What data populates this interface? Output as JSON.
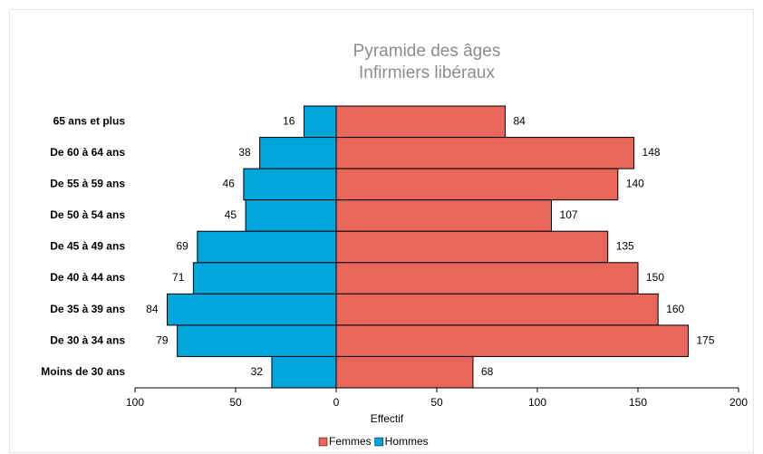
{
  "chart_data": {
    "type": "pyramid",
    "title": "Pyramide des âges",
    "subtitle": "Infirmiers libéraux",
    "x_label": "Effectif",
    "categories": [
      "65 ans et plus",
      "De 60 à 64 ans",
      "De 55 à 59 ans",
      "De 50 à 54 ans",
      "De 45 à 49 ans",
      "De 40 à 44 ans",
      "De 35 à 39 ans",
      "De 30 à 34 ans",
      "Moins de 30 ans"
    ],
    "series": [
      {
        "name": "Femmes",
        "color": "#e8675a",
        "values": [
          84,
          148,
          140,
          107,
          135,
          150,
          160,
          175,
          68
        ]
      },
      {
        "name": "Hommes",
        "color": "#00a5dc",
        "values": [
          -16,
          -38,
          -46,
          -45,
          -69,
          -71,
          -84,
          -79,
          -32
        ],
        "value_labels": [
          "16",
          "38",
          "46",
          "45",
          "69",
          "71",
          "84",
          "79",
          "32"
        ]
      }
    ],
    "xlim": [
      -100,
      200
    ],
    "xticks": [
      {
        "value": -100,
        "label": "100"
      },
      {
        "value": -50,
        "label": "50"
      },
      0,
      50,
      100,
      150,
      200
    ],
    "legend": "bottom"
  }
}
